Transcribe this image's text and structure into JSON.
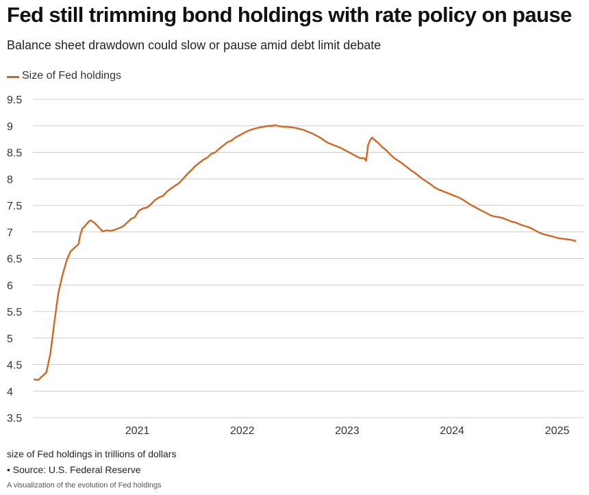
{
  "header": {
    "title": "Fed still trimming bond holdings with rate policy on pause",
    "subtitle": "Balance sheet drawdown could slow or pause amid debt limit debate"
  },
  "footer": {
    "unit_note": "size of Fed holdings in trillions of dollars",
    "source": "• Source: U.S. Federal Reserve",
    "caption": "A visualization of the evolution of Fed holdings"
  },
  "colors": {
    "series": "#d4651f",
    "grid": "#cccccc",
    "text": "#333333"
  },
  "chart_data": {
    "type": "line",
    "ylim": [
      3.5,
      9.5
    ],
    "xlim": [
      "2020-01-08",
      "2025-03-05"
    ],
    "yticks": [
      3.5,
      4,
      4.5,
      5,
      5.5,
      6,
      6.5,
      7,
      7.5,
      8,
      8.5,
      9,
      9.5
    ],
    "ytick_labels": [
      "3.5",
      "4",
      "4.5",
      "5",
      "5.5",
      "6",
      "6.5",
      "7",
      "7.5",
      "8",
      "8.5",
      "9",
      "9.5"
    ],
    "xticks": [
      "2021-01-01",
      "2022-01-01",
      "2023-01-01",
      "2024-01-01",
      "2025-01-01"
    ],
    "xtick_labels": [
      "2021",
      "2022",
      "2023",
      "2024",
      "2025"
    ],
    "grid": "horizontal",
    "legend_position": "top-left",
    "series": [
      {
        "name": "Size of Fed holdings",
        "points": [
          [
            "2020-01-08",
            4.22
          ],
          [
            "2020-01-22",
            4.21
          ],
          [
            "2020-02-05",
            4.28
          ],
          [
            "2020-02-19",
            4.35
          ],
          [
            "2020-03-04",
            4.7
          ],
          [
            "2020-03-18",
            5.3
          ],
          [
            "2020-04-01",
            5.85
          ],
          [
            "2020-04-15",
            6.18
          ],
          [
            "2020-04-29",
            6.45
          ],
          [
            "2020-05-13",
            6.63
          ],
          [
            "2020-05-27",
            6.7
          ],
          [
            "2020-06-10",
            6.77
          ],
          [
            "2020-06-17",
            6.96
          ],
          [
            "2020-06-24",
            7.07
          ],
          [
            "2020-07-01",
            7.1
          ],
          [
            "2020-07-08",
            7.15
          ],
          [
            "2020-07-15",
            7.19
          ],
          [
            "2020-07-22",
            7.22
          ],
          [
            "2020-08-05",
            7.17
          ],
          [
            "2020-08-19",
            7.09
          ],
          [
            "2020-09-02",
            7.01
          ],
          [
            "2020-09-16",
            7.03
          ],
          [
            "2020-09-30",
            7.02
          ],
          [
            "2020-10-14",
            7.04
          ],
          [
            "2020-10-28",
            7.07
          ],
          [
            "2020-11-11",
            7.1
          ],
          [
            "2020-11-25",
            7.17
          ],
          [
            "2020-12-09",
            7.24
          ],
          [
            "2020-12-23",
            7.28
          ],
          [
            "2021-01-06",
            7.4
          ],
          [
            "2021-01-20",
            7.44
          ],
          [
            "2021-02-03",
            7.46
          ],
          [
            "2021-02-17",
            7.52
          ],
          [
            "2021-03-03",
            7.6
          ],
          [
            "2021-03-17",
            7.65
          ],
          [
            "2021-03-31",
            7.68
          ],
          [
            "2021-04-14",
            7.76
          ],
          [
            "2021-04-28",
            7.82
          ],
          [
            "2021-05-12",
            7.87
          ],
          [
            "2021-05-26",
            7.92
          ],
          [
            "2021-06-09",
            8.0
          ],
          [
            "2021-06-23",
            8.09
          ],
          [
            "2021-07-07",
            8.16
          ],
          [
            "2021-07-21",
            8.24
          ],
          [
            "2021-08-04",
            8.3
          ],
          [
            "2021-08-18",
            8.36
          ],
          [
            "2021-09-01",
            8.4
          ],
          [
            "2021-09-15",
            8.47
          ],
          [
            "2021-09-29",
            8.5
          ],
          [
            "2021-10-13",
            8.57
          ],
          [
            "2021-10-27",
            8.63
          ],
          [
            "2021-11-10",
            8.69
          ],
          [
            "2021-11-24",
            8.72
          ],
          [
            "2021-12-08",
            8.78
          ],
          [
            "2021-12-22",
            8.82
          ],
          [
            "2022-01-05",
            8.86
          ],
          [
            "2022-01-19",
            8.9
          ],
          [
            "2022-02-02",
            8.93
          ],
          [
            "2022-02-16",
            8.95
          ],
          [
            "2022-03-02",
            8.97
          ],
          [
            "2022-03-16",
            8.98
          ],
          [
            "2022-03-30",
            9.0
          ],
          [
            "2022-04-13",
            9.0
          ],
          [
            "2022-04-27",
            9.01
          ],
          [
            "2022-05-11",
            8.99
          ],
          [
            "2022-05-25",
            8.98
          ],
          [
            "2022-06-08",
            8.98
          ],
          [
            "2022-06-22",
            8.97
          ],
          [
            "2022-07-06",
            8.96
          ],
          [
            "2022-07-20",
            8.94
          ],
          [
            "2022-08-03",
            8.92
          ],
          [
            "2022-08-17",
            8.89
          ],
          [
            "2022-08-31",
            8.86
          ],
          [
            "2022-09-14",
            8.82
          ],
          [
            "2022-09-28",
            8.78
          ],
          [
            "2022-10-12",
            8.73
          ],
          [
            "2022-10-26",
            8.68
          ],
          [
            "2022-11-09",
            8.65
          ],
          [
            "2022-11-23",
            8.62
          ],
          [
            "2022-12-07",
            8.59
          ],
          [
            "2022-12-21",
            8.55
          ],
          [
            "2023-01-04",
            8.51
          ],
          [
            "2023-01-18",
            8.47
          ],
          [
            "2023-02-01",
            8.43
          ],
          [
            "2023-02-15",
            8.39
          ],
          [
            "2023-03-01",
            8.39
          ],
          [
            "2023-03-08",
            8.34
          ],
          [
            "2023-03-15",
            8.64
          ],
          [
            "2023-03-22",
            8.73
          ],
          [
            "2023-03-29",
            8.78
          ],
          [
            "2023-04-05",
            8.74
          ],
          [
            "2023-04-19",
            8.68
          ],
          [
            "2023-05-03",
            8.6
          ],
          [
            "2023-05-17",
            8.54
          ],
          [
            "2023-05-31",
            8.46
          ],
          [
            "2023-06-14",
            8.39
          ],
          [
            "2023-06-28",
            8.34
          ],
          [
            "2023-07-12",
            8.29
          ],
          [
            "2023-07-26",
            8.23
          ],
          [
            "2023-08-09",
            8.17
          ],
          [
            "2023-08-23",
            8.12
          ],
          [
            "2023-09-06",
            8.06
          ],
          [
            "2023-09-20",
            8.0
          ],
          [
            "2023-10-04",
            7.95
          ],
          [
            "2023-10-18",
            7.9
          ],
          [
            "2023-11-01",
            7.84
          ],
          [
            "2023-11-15",
            7.8
          ],
          [
            "2023-11-29",
            7.77
          ],
          [
            "2023-12-13",
            7.74
          ],
          [
            "2023-12-27",
            7.71
          ],
          [
            "2024-01-10",
            7.68
          ],
          [
            "2024-01-24",
            7.65
          ],
          [
            "2024-02-07",
            7.61
          ],
          [
            "2024-02-21",
            7.56
          ],
          [
            "2024-03-06",
            7.51
          ],
          [
            "2024-03-20",
            7.47
          ],
          [
            "2024-04-03",
            7.43
          ],
          [
            "2024-04-17",
            7.39
          ],
          [
            "2024-05-01",
            7.35
          ],
          [
            "2024-05-15",
            7.31
          ],
          [
            "2024-05-29",
            7.29
          ],
          [
            "2024-06-12",
            7.28
          ],
          [
            "2024-06-26",
            7.26
          ],
          [
            "2024-07-10",
            7.23
          ],
          [
            "2024-07-24",
            7.2
          ],
          [
            "2024-08-07",
            7.18
          ],
          [
            "2024-08-21",
            7.15
          ],
          [
            "2024-09-04",
            7.12
          ],
          [
            "2024-09-18",
            7.1
          ],
          [
            "2024-10-02",
            7.07
          ],
          [
            "2024-10-16",
            7.03
          ],
          [
            "2024-10-30",
            6.99
          ],
          [
            "2024-11-13",
            6.96
          ],
          [
            "2024-11-27",
            6.94
          ],
          [
            "2024-12-11",
            6.92
          ],
          [
            "2024-12-25",
            6.9
          ],
          [
            "2025-01-08",
            6.88
          ],
          [
            "2025-01-22",
            6.87
          ],
          [
            "2025-02-05",
            6.86
          ],
          [
            "2025-02-19",
            6.85
          ],
          [
            "2025-03-05",
            6.83
          ]
        ]
      }
    ]
  }
}
